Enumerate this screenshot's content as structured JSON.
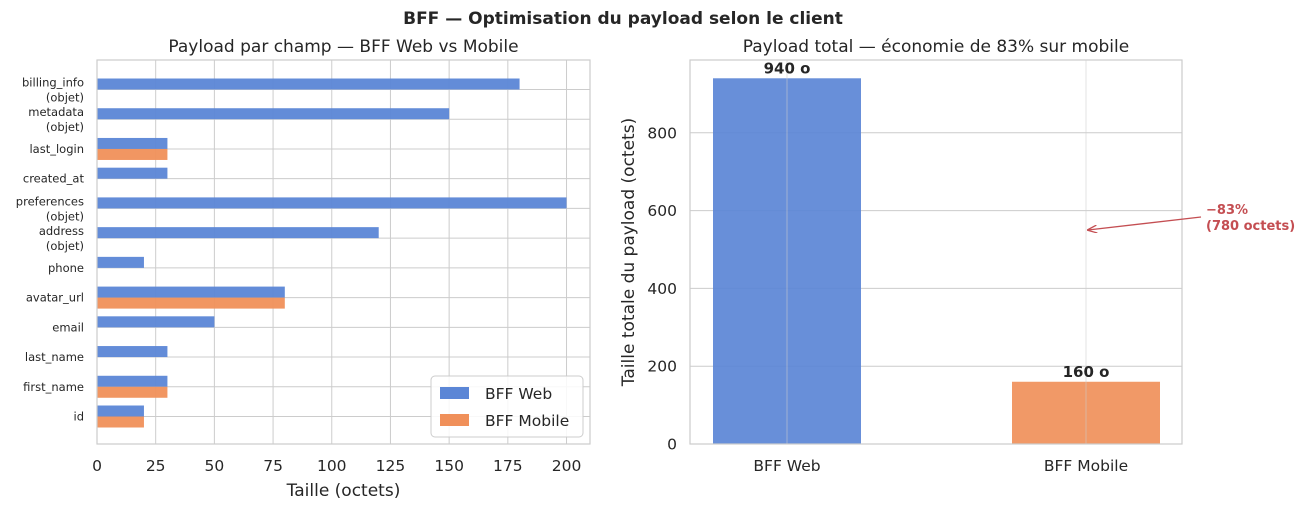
{
  "suptitle": "BFF — Optimisation du payload selon le client",
  "colors": {
    "web": "#5b86d6",
    "mobile": "#f0905a",
    "annotation": "#c44e52"
  },
  "chart_data": [
    {
      "type": "bar",
      "orientation": "horizontal",
      "title": "Payload par champ — BFF Web vs Mobile",
      "xlabel": "Taille (octets)",
      "ylabel": "",
      "xlim": [
        0,
        210
      ],
      "xticks": [
        "0",
        "25",
        "50",
        "75",
        "100",
        "125",
        "150",
        "175",
        "200"
      ],
      "grid": true,
      "legend_position": "lower-right",
      "categories": [
        "id",
        "first_name",
        "last_name",
        "email",
        "avatar_url",
        "phone",
        "address\n(objet)",
        "preferences\n(objet)",
        "created_at",
        "last_login",
        "metadata\n(objet)",
        "billing_info\n(objet)"
      ],
      "series": [
        {
          "name": "BFF Web",
          "values": [
            20,
            30,
            30,
            50,
            80,
            20,
            120,
            200,
            30,
            30,
            150,
            180
          ]
        },
        {
          "name": "BFF Mobile",
          "values": [
            20,
            30,
            0,
            0,
            80,
            0,
            0,
            0,
            0,
            30,
            0,
            0
          ]
        }
      ]
    },
    {
      "type": "bar",
      "title": "Payload total — économie de 83% sur mobile",
      "xlabel": "",
      "ylabel": "Taille totale du payload (octets)",
      "ylim": [
        0,
        987
      ],
      "yticks": [
        "0",
        "200",
        "400",
        "600",
        "800"
      ],
      "grid": true,
      "categories": [
        "BFF Web",
        "BFF Mobile"
      ],
      "values": [
        940,
        160
      ],
      "data_labels": [
        "940 o",
        "160 o"
      ],
      "annotation": {
        "line1": "−83%",
        "line2": "(780 octets)",
        "points_to": {
          "x": "BFF Mobile",
          "y": 550
        }
      }
    }
  ]
}
